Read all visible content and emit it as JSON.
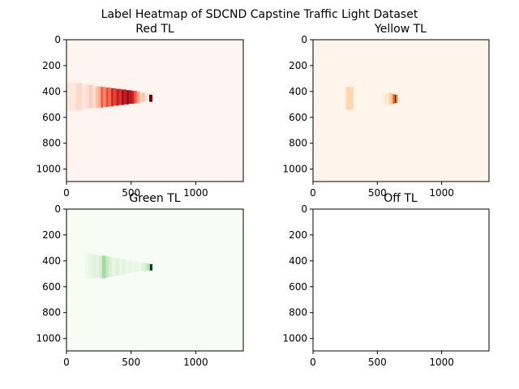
{
  "figure": {
    "suptitle": "Label Heatmap of SDCND Capstine Traffic Light Dataset"
  },
  "chart_data": [
    {
      "type": "heatmap",
      "title": "Red TL",
      "colormap": "Reds",
      "xlim": [
        0,
        1368
      ],
      "ylim": [
        1096,
        0
      ],
      "xticks": [
        0,
        500,
        1000
      ],
      "yticks": [
        0,
        200,
        400,
        600,
        800,
        1000
      ],
      "background": "#fff5f0",
      "columns": [
        {
          "x0": 0,
          "x1": 70,
          "y0": 330,
          "y1": 550,
          "intensity": 0.06
        },
        {
          "x0": 70,
          "x1": 120,
          "y0": 335,
          "y1": 545,
          "intensity": 0.12
        },
        {
          "x0": 120,
          "x1": 150,
          "y0": 340,
          "y1": 540,
          "intensity": 0.06
        },
        {
          "x0": 150,
          "x1": 175,
          "y0": 345,
          "y1": 535,
          "intensity": 0.1
        },
        {
          "x0": 175,
          "x1": 200,
          "y0": 350,
          "y1": 530,
          "intensity": 0.18
        },
        {
          "x0": 200,
          "x1": 225,
          "y0": 355,
          "y1": 530,
          "intensity": 0.1
        },
        {
          "x0": 225,
          "x1": 245,
          "y0": 360,
          "y1": 530,
          "intensity": 0.22
        },
        {
          "x0": 245,
          "x1": 265,
          "y0": 360,
          "y1": 525,
          "intensity": 0.3
        },
        {
          "x0": 265,
          "x1": 285,
          "y0": 365,
          "y1": 525,
          "intensity": 0.55
        },
        {
          "x0": 285,
          "x1": 305,
          "y0": 365,
          "y1": 520,
          "intensity": 0.4
        },
        {
          "x0": 305,
          "x1": 325,
          "y0": 370,
          "y1": 520,
          "intensity": 0.6
        },
        {
          "x0": 325,
          "x1": 345,
          "y0": 370,
          "y1": 515,
          "intensity": 0.5
        },
        {
          "x0": 345,
          "x1": 365,
          "y0": 375,
          "y1": 515,
          "intensity": 0.7
        },
        {
          "x0": 365,
          "x1": 385,
          "y0": 375,
          "y1": 510,
          "intensity": 0.62
        },
        {
          "x0": 385,
          "x1": 405,
          "y0": 380,
          "y1": 510,
          "intensity": 0.75
        },
        {
          "x0": 405,
          "x1": 425,
          "y0": 380,
          "y1": 505,
          "intensity": 0.68
        },
        {
          "x0": 425,
          "x1": 445,
          "y0": 385,
          "y1": 505,
          "intensity": 0.85
        },
        {
          "x0": 445,
          "x1": 465,
          "y0": 385,
          "y1": 500,
          "intensity": 0.75
        },
        {
          "x0": 465,
          "x1": 485,
          "y0": 390,
          "y1": 500,
          "intensity": 0.9
        },
        {
          "x0": 485,
          "x1": 505,
          "y0": 390,
          "y1": 495,
          "intensity": 0.8
        },
        {
          "x0": 505,
          "x1": 525,
          "y0": 395,
          "y1": 495,
          "intensity": 0.72
        },
        {
          "x0": 525,
          "x1": 545,
          "y0": 395,
          "y1": 490,
          "intensity": 0.55
        },
        {
          "x0": 545,
          "x1": 565,
          "y0": 400,
          "y1": 490,
          "intensity": 0.35
        },
        {
          "x0": 565,
          "x1": 585,
          "y0": 405,
          "y1": 485,
          "intensity": 0.15
        },
        {
          "x0": 585,
          "x1": 605,
          "y0": 410,
          "y1": 480,
          "intensity": 0.22
        },
        {
          "x0": 605,
          "x1": 625,
          "y0": 415,
          "y1": 475,
          "intensity": 0.1
        },
        {
          "x0": 625,
          "x1": 640,
          "y0": 420,
          "y1": 470,
          "intensity": 0.05
        },
        {
          "x0": 640,
          "x1": 665,
          "y0": 425,
          "y1": 480,
          "intensity": 1.0
        }
      ]
    },
    {
      "type": "heatmap",
      "title": "Yellow TL",
      "colormap": "Oranges",
      "xlim": [
        0,
        1368
      ],
      "ylim": [
        1096,
        0
      ],
      "xticks": [
        0,
        500,
        1000
      ],
      "yticks": [
        0,
        200,
        400,
        600,
        800,
        1000
      ],
      "background": "#fff5eb",
      "columns": [
        {
          "x0": 255,
          "x1": 315,
          "y0": 365,
          "y1": 540,
          "intensity": 0.2
        },
        {
          "x0": 540,
          "x1": 560,
          "y0": 420,
          "y1": 500,
          "intensity": 0.06
        },
        {
          "x0": 560,
          "x1": 575,
          "y0": 415,
          "y1": 500,
          "intensity": 0.12
        },
        {
          "x0": 575,
          "x1": 590,
          "y0": 410,
          "y1": 505,
          "intensity": 0.08
        },
        {
          "x0": 590,
          "x1": 605,
          "y0": 410,
          "y1": 505,
          "intensity": 0.22
        },
        {
          "x0": 605,
          "x1": 620,
          "y0": 415,
          "y1": 500,
          "intensity": 0.3
        },
        {
          "x0": 620,
          "x1": 635,
          "y0": 420,
          "y1": 495,
          "intensity": 0.65
        },
        {
          "x0": 635,
          "x1": 648,
          "y0": 425,
          "y1": 490,
          "intensity": 1.0
        },
        {
          "x0": 648,
          "x1": 660,
          "y0": 425,
          "y1": 490,
          "intensity": 0.45
        }
      ]
    },
    {
      "type": "heatmap",
      "title": "Green TL",
      "colormap": "Greens",
      "xlim": [
        0,
        1368
      ],
      "ylim": [
        1096,
        0
      ],
      "xticks": [
        0,
        500,
        1000
      ],
      "yticks": [
        0,
        200,
        400,
        600,
        800,
        1000
      ],
      "background": "#f7fcf5",
      "columns": [
        {
          "x0": 140,
          "x1": 170,
          "y0": 335,
          "y1": 540,
          "intensity": 0.04
        },
        {
          "x0": 170,
          "x1": 200,
          "y0": 345,
          "y1": 535,
          "intensity": 0.08
        },
        {
          "x0": 200,
          "x1": 230,
          "y0": 350,
          "y1": 535,
          "intensity": 0.12
        },
        {
          "x0": 230,
          "x1": 255,
          "y0": 355,
          "y1": 535,
          "intensity": 0.1
        },
        {
          "x0": 255,
          "x1": 275,
          "y0": 360,
          "y1": 535,
          "intensity": 0.18
        },
        {
          "x0": 275,
          "x1": 305,
          "y0": 360,
          "y1": 535,
          "intensity": 0.35
        },
        {
          "x0": 305,
          "x1": 330,
          "y0": 365,
          "y1": 530,
          "intensity": 0.25
        },
        {
          "x0": 330,
          "x1": 355,
          "y0": 370,
          "y1": 525,
          "intensity": 0.15
        },
        {
          "x0": 355,
          "x1": 380,
          "y0": 375,
          "y1": 520,
          "intensity": 0.08
        },
        {
          "x0": 380,
          "x1": 405,
          "y0": 380,
          "y1": 515,
          "intensity": 0.14
        },
        {
          "x0": 405,
          "x1": 430,
          "y0": 385,
          "y1": 510,
          "intensity": 0.07
        },
        {
          "x0": 430,
          "x1": 455,
          "y0": 390,
          "y1": 505,
          "intensity": 0.12
        },
        {
          "x0": 455,
          "x1": 480,
          "y0": 395,
          "y1": 500,
          "intensity": 0.06
        },
        {
          "x0": 480,
          "x1": 505,
          "y0": 400,
          "y1": 495,
          "intensity": 0.1
        },
        {
          "x0": 505,
          "x1": 530,
          "y0": 405,
          "y1": 490,
          "intensity": 0.05
        },
        {
          "x0": 530,
          "x1": 555,
          "y0": 410,
          "y1": 485,
          "intensity": 0.08
        },
        {
          "x0": 555,
          "x1": 580,
          "y0": 410,
          "y1": 485,
          "intensity": 0.04
        },
        {
          "x0": 580,
          "x1": 605,
          "y0": 415,
          "y1": 480,
          "intensity": 0.12
        },
        {
          "x0": 605,
          "x1": 625,
          "y0": 415,
          "y1": 480,
          "intensity": 0.2
        },
        {
          "x0": 625,
          "x1": 645,
          "y0": 420,
          "y1": 475,
          "intensity": 0.3
        },
        {
          "x0": 645,
          "x1": 665,
          "y0": 425,
          "y1": 475,
          "intensity": 1.0
        }
      ]
    },
    {
      "type": "heatmap",
      "title": "Off TL",
      "colormap": "Greys",
      "xlim": [
        0,
        1368
      ],
      "ylim": [
        1096,
        0
      ],
      "xticks": [
        0,
        500,
        1000
      ],
      "yticks": [
        0,
        200,
        400,
        600,
        800,
        1000
      ],
      "background": "#ffffff",
      "columns": []
    }
  ]
}
